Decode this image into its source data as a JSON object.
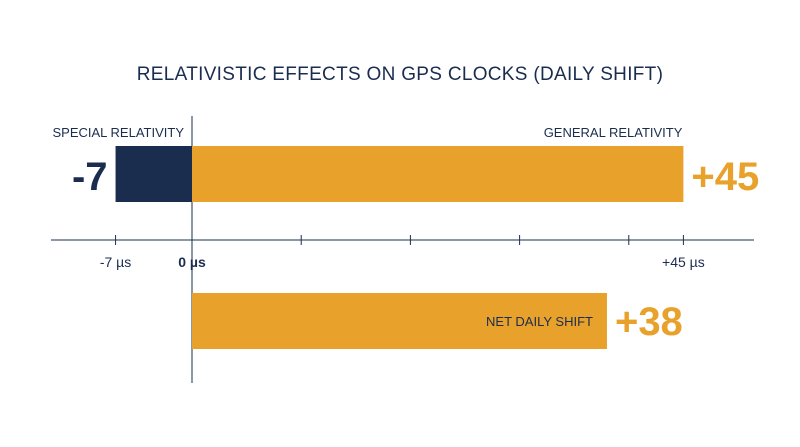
{
  "chart_data": {
    "type": "bar",
    "title": "RELATIVISTIC EFFECTS ON GPS CLOCKS (DAILY SHIFT)",
    "unit": "µs",
    "xlim": [
      -10,
      50
    ],
    "grid": false,
    "bars": [
      {
        "name": "SPECIAL RELATIVITY",
        "value": -7,
        "value_label": "-7",
        "color": "#1b2d4f"
      },
      {
        "name": "GENERAL RELATIVITY",
        "value": 45,
        "value_label": "+45",
        "color": "#e8a22b"
      },
      {
        "name": "NET DAILY SHIFT",
        "value": 38,
        "value_label": "+38",
        "color": "#e8a22b"
      }
    ],
    "ticks": [
      {
        "value": -7,
        "label": "-7 µs"
      },
      {
        "value": 0,
        "label": "0 µs"
      },
      {
        "value": 10,
        "label": ""
      },
      {
        "value": 20,
        "label": ""
      },
      {
        "value": 30,
        "label": ""
      },
      {
        "value": 40,
        "label": ""
      },
      {
        "value": 45,
        "label": "+45 µs"
      }
    ],
    "colors": {
      "text": "#1b2d4f",
      "accent": "#e8a22b",
      "axis": "#1b2d4f"
    }
  }
}
